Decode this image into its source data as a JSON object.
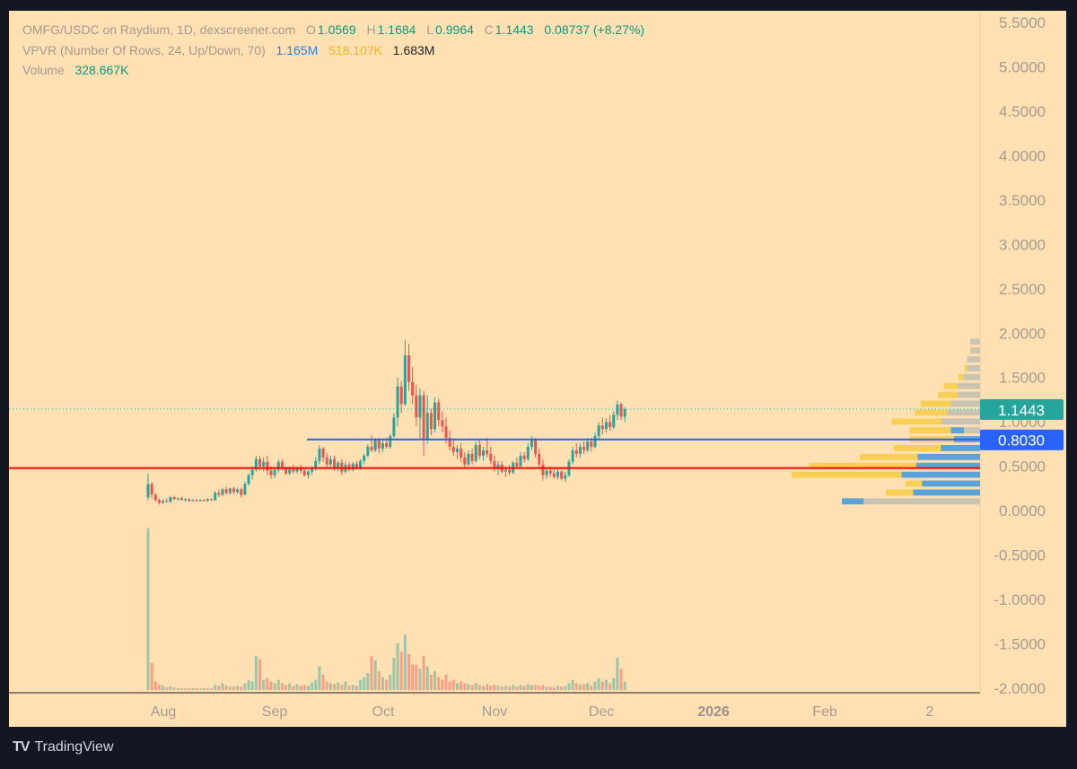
{
  "header": {
    "pair": "OMFG/USDC on Raydium, 1D, dexscreener.com",
    "o_label": "O",
    "o": "1.0569",
    "h_label": "H",
    "h": "1.1684",
    "l_label": "L",
    "l": "0.9964",
    "c_label": "C",
    "c": "1.1443",
    "change": "0.08737 (+8.27%)",
    "vpvr_label": "VPVR (Number Of Rows, 24, Up/Down, 70)",
    "vpvr_up": "1.165M",
    "vpvr_down": "518.107K",
    "vpvr_total": "1.683M",
    "volume_label": "Volume",
    "volume_value": "328.667K"
  },
  "footer": {
    "brand": "TradingView",
    "logo": "TV"
  },
  "colors": {
    "up": "#26a69a",
    "down": "#ef5350",
    "background": "#ffe0b2",
    "support": "#ff0000",
    "resistance": "#2962ff"
  },
  "chart_data": {
    "type": "candlestick",
    "ylim": [
      -2.0,
      5.5
    ],
    "y_ticks": [
      "5.5000",
      "5.0000",
      "4.5000",
      "4.0000",
      "3.5000",
      "3.0000",
      "2.5000",
      "2.0000",
      "1.5000",
      "1.0000",
      "0.5000",
      "0.0000",
      "-0.5000",
      "-1.0000",
      "-1.5000",
      "-2.0000"
    ],
    "x_ticks": [
      "Aug",
      "Sep",
      "Oct",
      "Nov",
      "Dec",
      "2026",
      "Feb",
      "2"
    ],
    "last_price": 1.1443,
    "last_price_label": "1.1443",
    "horizontal_lines": [
      {
        "name": "resistance",
        "value": 0.803,
        "label": "0.8030",
        "color": "#2962ff"
      },
      {
        "name": "support",
        "value": 0.48,
        "color": "#ff0000"
      }
    ],
    "vpvr_rows": [
      {
        "price": 1.9,
        "up": 0.0,
        "down": 0.0,
        "other": 0.03
      },
      {
        "price": 1.8,
        "up": 0.0,
        "down": 0.0,
        "other": 0.03
      },
      {
        "price": 1.7,
        "up": 0.0,
        "down": 0.0,
        "other": 0.04
      },
      {
        "price": 1.6,
        "up": 0.0,
        "down": 0.01,
        "other": 0.04
      },
      {
        "price": 1.5,
        "up": 0.0,
        "down": 0.02,
        "other": 0.05
      },
      {
        "price": 1.4,
        "up": 0.0,
        "down": 0.05,
        "other": 0.07
      },
      {
        "price": 1.3,
        "up": 0.0,
        "down": 0.07,
        "other": 0.07
      },
      {
        "price": 1.2,
        "up": 0.0,
        "down": 0.11,
        "other": 0.09
      },
      {
        "price": 1.1,
        "up": 0.0,
        "down": 0.12,
        "other": 0.1
      },
      {
        "price": 1.0,
        "up": 0.0,
        "down": 0.18,
        "other": 0.12
      },
      {
        "price": 0.9,
        "up": 0.09,
        "down": 0.15,
        "other": 0.05
      },
      {
        "price": 0.8,
        "up": 0.18,
        "down": 0.16,
        "other": 0.0
      },
      {
        "price": 0.7,
        "up": 0.27,
        "down": 0.17,
        "other": 0.0
      },
      {
        "price": 0.6,
        "up": 0.43,
        "down": 0.21,
        "other": 0.0
      },
      {
        "price": 0.5,
        "up": 0.44,
        "down": 0.39,
        "other": 0.0
      },
      {
        "price": 0.4,
        "up": 0.54,
        "down": 0.4,
        "other": 0.0
      },
      {
        "price": 0.3,
        "up": 0.4,
        "down": 0.06,
        "other": 0.0
      },
      {
        "price": 0.2,
        "up": 0.46,
        "down": 0.1,
        "other": 0.0
      },
      {
        "price": 0.1,
        "up": 0.15,
        "down": 0.0,
        "other": 0.36
      }
    ],
    "candles": [
      {
        "o": 0.15,
        "h": 0.42,
        "l": 0.12,
        "c": 0.3,
        "v": 1.9
      },
      {
        "o": 0.3,
        "h": 0.32,
        "l": 0.14,
        "c": 0.18,
        "v": 0.32
      },
      {
        "o": 0.18,
        "h": 0.2,
        "l": 0.1,
        "c": 0.12,
        "v": 0.1
      },
      {
        "o": 0.12,
        "h": 0.14,
        "l": 0.07,
        "c": 0.09,
        "v": 0.06
      },
      {
        "o": 0.09,
        "h": 0.13,
        "l": 0.07,
        "c": 0.11,
        "v": 0.05
      },
      {
        "o": 0.11,
        "h": 0.14,
        "l": 0.09,
        "c": 0.1,
        "v": 0.03
      },
      {
        "o": 0.1,
        "h": 0.16,
        "l": 0.09,
        "c": 0.15,
        "v": 0.04
      },
      {
        "o": 0.15,
        "h": 0.17,
        "l": 0.12,
        "c": 0.13,
        "v": 0.03
      },
      {
        "o": 0.13,
        "h": 0.15,
        "l": 0.11,
        "c": 0.14,
        "v": 0.02
      },
      {
        "o": 0.14,
        "h": 0.16,
        "l": 0.12,
        "c": 0.12,
        "v": 0.02
      },
      {
        "o": 0.12,
        "h": 0.14,
        "l": 0.1,
        "c": 0.13,
        "v": 0.02
      },
      {
        "o": 0.13,
        "h": 0.14,
        "l": 0.1,
        "c": 0.11,
        "v": 0.02
      },
      {
        "o": 0.11,
        "h": 0.13,
        "l": 0.1,
        "c": 0.12,
        "v": 0.02
      },
      {
        "o": 0.12,
        "h": 0.13,
        "l": 0.1,
        "c": 0.11,
        "v": 0.02
      },
      {
        "o": 0.11,
        "h": 0.13,
        "l": 0.1,
        "c": 0.12,
        "v": 0.02
      },
      {
        "o": 0.12,
        "h": 0.13,
        "l": 0.1,
        "c": 0.11,
        "v": 0.02
      },
      {
        "o": 0.11,
        "h": 0.14,
        "l": 0.1,
        "c": 0.13,
        "v": 0.02
      },
      {
        "o": 0.13,
        "h": 0.14,
        "l": 0.11,
        "c": 0.12,
        "v": 0.02
      },
      {
        "o": 0.12,
        "h": 0.22,
        "l": 0.11,
        "c": 0.2,
        "v": 0.06
      },
      {
        "o": 0.2,
        "h": 0.24,
        "l": 0.15,
        "c": 0.18,
        "v": 0.05
      },
      {
        "o": 0.18,
        "h": 0.26,
        "l": 0.16,
        "c": 0.24,
        "v": 0.08
      },
      {
        "o": 0.24,
        "h": 0.27,
        "l": 0.18,
        "c": 0.2,
        "v": 0.05
      },
      {
        "o": 0.2,
        "h": 0.26,
        "l": 0.18,
        "c": 0.25,
        "v": 0.04
      },
      {
        "o": 0.25,
        "h": 0.27,
        "l": 0.19,
        "c": 0.21,
        "v": 0.04
      },
      {
        "o": 0.21,
        "h": 0.26,
        "l": 0.19,
        "c": 0.24,
        "v": 0.05
      },
      {
        "o": 0.24,
        "h": 0.26,
        "l": 0.15,
        "c": 0.18,
        "v": 0.04
      },
      {
        "o": 0.18,
        "h": 0.33,
        "l": 0.17,
        "c": 0.3,
        "v": 0.08
      },
      {
        "o": 0.3,
        "h": 0.42,
        "l": 0.28,
        "c": 0.4,
        "v": 0.12
      },
      {
        "o": 0.4,
        "h": 0.5,
        "l": 0.35,
        "c": 0.46,
        "v": 0.1
      },
      {
        "o": 0.46,
        "h": 0.62,
        "l": 0.44,
        "c": 0.58,
        "v": 0.4
      },
      {
        "o": 0.58,
        "h": 0.62,
        "l": 0.45,
        "c": 0.5,
        "v": 0.36
      },
      {
        "o": 0.5,
        "h": 0.6,
        "l": 0.44,
        "c": 0.55,
        "v": 0.12
      },
      {
        "o": 0.55,
        "h": 0.62,
        "l": 0.4,
        "c": 0.45,
        "v": 0.14
      },
      {
        "o": 0.45,
        "h": 0.5,
        "l": 0.36,
        "c": 0.4,
        "v": 0.1
      },
      {
        "o": 0.4,
        "h": 0.48,
        "l": 0.37,
        "c": 0.46,
        "v": 0.08
      },
      {
        "o": 0.46,
        "h": 0.58,
        "l": 0.43,
        "c": 0.55,
        "v": 0.12
      },
      {
        "o": 0.55,
        "h": 0.58,
        "l": 0.45,
        "c": 0.48,
        "v": 0.08
      },
      {
        "o": 0.48,
        "h": 0.5,
        "l": 0.4,
        "c": 0.42,
        "v": 0.06
      },
      {
        "o": 0.42,
        "h": 0.5,
        "l": 0.4,
        "c": 0.48,
        "v": 0.08
      },
      {
        "o": 0.48,
        "h": 0.52,
        "l": 0.42,
        "c": 0.44,
        "v": 0.05
      },
      {
        "o": 0.44,
        "h": 0.5,
        "l": 0.42,
        "c": 0.48,
        "v": 0.07
      },
      {
        "o": 0.48,
        "h": 0.52,
        "l": 0.42,
        "c": 0.45,
        "v": 0.05
      },
      {
        "o": 0.45,
        "h": 0.48,
        "l": 0.38,
        "c": 0.4,
        "v": 0.06
      },
      {
        "o": 0.4,
        "h": 0.46,
        "l": 0.36,
        "c": 0.44,
        "v": 0.05
      },
      {
        "o": 0.44,
        "h": 0.5,
        "l": 0.4,
        "c": 0.48,
        "v": 0.09
      },
      {
        "o": 0.48,
        "h": 0.6,
        "l": 0.45,
        "c": 0.56,
        "v": 0.12
      },
      {
        "o": 0.56,
        "h": 0.74,
        "l": 0.52,
        "c": 0.7,
        "v": 0.28
      },
      {
        "o": 0.7,
        "h": 0.72,
        "l": 0.55,
        "c": 0.6,
        "v": 0.18
      },
      {
        "o": 0.6,
        "h": 0.65,
        "l": 0.48,
        "c": 0.52,
        "v": 0.1
      },
      {
        "o": 0.52,
        "h": 0.62,
        "l": 0.48,
        "c": 0.58,
        "v": 0.08
      },
      {
        "o": 0.58,
        "h": 0.62,
        "l": 0.45,
        "c": 0.48,
        "v": 0.07
      },
      {
        "o": 0.48,
        "h": 0.56,
        "l": 0.44,
        "c": 0.54,
        "v": 0.09
      },
      {
        "o": 0.54,
        "h": 0.58,
        "l": 0.4,
        "c": 0.44,
        "v": 0.06
      },
      {
        "o": 0.44,
        "h": 0.55,
        "l": 0.42,
        "c": 0.52,
        "v": 0.1
      },
      {
        "o": 0.52,
        "h": 0.55,
        "l": 0.44,
        "c": 0.46,
        "v": 0.05
      },
      {
        "o": 0.46,
        "h": 0.55,
        "l": 0.44,
        "c": 0.53,
        "v": 0.06
      },
      {
        "o": 0.53,
        "h": 0.56,
        "l": 0.46,
        "c": 0.48,
        "v": 0.05
      },
      {
        "o": 0.48,
        "h": 0.58,
        "l": 0.46,
        "c": 0.56,
        "v": 0.12
      },
      {
        "o": 0.56,
        "h": 0.64,
        "l": 0.52,
        "c": 0.62,
        "v": 0.15
      },
      {
        "o": 0.62,
        "h": 0.75,
        "l": 0.6,
        "c": 0.72,
        "v": 0.2
      },
      {
        "o": 0.72,
        "h": 0.85,
        "l": 0.66,
        "c": 0.68,
        "v": 0.4
      },
      {
        "o": 0.68,
        "h": 0.82,
        "l": 0.66,
        "c": 0.8,
        "v": 0.35
      },
      {
        "o": 0.8,
        "h": 0.82,
        "l": 0.65,
        "c": 0.7,
        "v": 0.22
      },
      {
        "o": 0.7,
        "h": 0.8,
        "l": 0.66,
        "c": 0.76,
        "v": 0.15
      },
      {
        "o": 0.76,
        "h": 0.82,
        "l": 0.7,
        "c": 0.72,
        "v": 0.12
      },
      {
        "o": 0.72,
        "h": 0.86,
        "l": 0.7,
        "c": 0.84,
        "v": 0.18
      },
      {
        "o": 0.84,
        "h": 1.1,
        "l": 0.82,
        "c": 1.05,
        "v": 0.38
      },
      {
        "o": 1.05,
        "h": 1.5,
        "l": 0.95,
        "c": 1.4,
        "v": 0.55
      },
      {
        "o": 1.4,
        "h": 1.46,
        "l": 1.1,
        "c": 1.2,
        "v": 0.45
      },
      {
        "o": 1.2,
        "h": 1.92,
        "l": 1.18,
        "c": 1.75,
        "v": 0.65
      },
      {
        "o": 1.75,
        "h": 1.88,
        "l": 1.35,
        "c": 1.45,
        "v": 0.42
      },
      {
        "o": 1.45,
        "h": 1.62,
        "l": 1.2,
        "c": 1.3,
        "v": 0.3
      },
      {
        "o": 1.3,
        "h": 1.42,
        "l": 0.95,
        "c": 1.05,
        "v": 0.3
      },
      {
        "o": 1.05,
        "h": 1.38,
        "l": 0.8,
        "c": 1.3,
        "v": 0.25
      },
      {
        "o": 1.3,
        "h": 1.35,
        "l": 0.62,
        "c": 0.8,
        "v": 0.4
      },
      {
        "o": 0.8,
        "h": 1.3,
        "l": 0.75,
        "c": 1.1,
        "v": 0.28
      },
      {
        "o": 1.1,
        "h": 1.15,
        "l": 0.85,
        "c": 0.92,
        "v": 0.18
      },
      {
        "o": 0.92,
        "h": 1.28,
        "l": 0.88,
        "c": 1.22,
        "v": 0.22
      },
      {
        "o": 1.22,
        "h": 1.26,
        "l": 0.95,
        "c": 1.02,
        "v": 0.15
      },
      {
        "o": 1.02,
        "h": 1.12,
        "l": 0.88,
        "c": 0.95,
        "v": 0.12
      },
      {
        "o": 0.95,
        "h": 1.05,
        "l": 0.76,
        "c": 0.82,
        "v": 0.18
      },
      {
        "o": 0.82,
        "h": 0.9,
        "l": 0.68,
        "c": 0.72,
        "v": 0.1
      },
      {
        "o": 0.72,
        "h": 0.8,
        "l": 0.62,
        "c": 0.66,
        "v": 0.12
      },
      {
        "o": 0.66,
        "h": 0.74,
        "l": 0.58,
        "c": 0.7,
        "v": 0.08
      },
      {
        "o": 0.7,
        "h": 0.76,
        "l": 0.55,
        "c": 0.6,
        "v": 0.1
      },
      {
        "o": 0.6,
        "h": 0.66,
        "l": 0.48,
        "c": 0.52,
        "v": 0.08
      },
      {
        "o": 0.52,
        "h": 0.68,
        "l": 0.5,
        "c": 0.64,
        "v": 0.07
      },
      {
        "o": 0.64,
        "h": 0.7,
        "l": 0.52,
        "c": 0.56,
        "v": 0.06
      },
      {
        "o": 0.56,
        "h": 0.78,
        "l": 0.54,
        "c": 0.74,
        "v": 0.08
      },
      {
        "o": 0.74,
        "h": 0.8,
        "l": 0.58,
        "c": 0.62,
        "v": 0.06
      },
      {
        "o": 0.62,
        "h": 0.72,
        "l": 0.56,
        "c": 0.68,
        "v": 0.05
      },
      {
        "o": 0.68,
        "h": 0.82,
        "l": 0.6,
        "c": 0.64,
        "v": 0.07
      },
      {
        "o": 0.64,
        "h": 0.72,
        "l": 0.52,
        "c": 0.56,
        "v": 0.05
      },
      {
        "o": 0.56,
        "h": 0.62,
        "l": 0.44,
        "c": 0.48,
        "v": 0.06
      },
      {
        "o": 0.48,
        "h": 0.56,
        "l": 0.4,
        "c": 0.52,
        "v": 0.05
      },
      {
        "o": 0.52,
        "h": 0.56,
        "l": 0.42,
        "c": 0.44,
        "v": 0.04
      },
      {
        "o": 0.44,
        "h": 0.5,
        "l": 0.38,
        "c": 0.46,
        "v": 0.05
      },
      {
        "o": 0.46,
        "h": 0.52,
        "l": 0.4,
        "c": 0.43,
        "v": 0.04
      },
      {
        "o": 0.43,
        "h": 0.56,
        "l": 0.41,
        "c": 0.54,
        "v": 0.06
      },
      {
        "o": 0.54,
        "h": 0.6,
        "l": 0.48,
        "c": 0.5,
        "v": 0.04
      },
      {
        "o": 0.5,
        "h": 0.66,
        "l": 0.48,
        "c": 0.62,
        "v": 0.06
      },
      {
        "o": 0.62,
        "h": 0.66,
        "l": 0.54,
        "c": 0.58,
        "v": 0.05
      },
      {
        "o": 0.58,
        "h": 0.76,
        "l": 0.56,
        "c": 0.72,
        "v": 0.07
      },
      {
        "o": 0.72,
        "h": 0.84,
        "l": 0.68,
        "c": 0.8,
        "v": 0.06
      },
      {
        "o": 0.8,
        "h": 0.82,
        "l": 0.6,
        "c": 0.64,
        "v": 0.06
      },
      {
        "o": 0.64,
        "h": 0.7,
        "l": 0.48,
        "c": 0.52,
        "v": 0.05
      },
      {
        "o": 0.52,
        "h": 0.58,
        "l": 0.34,
        "c": 0.4,
        "v": 0.06
      },
      {
        "o": 0.4,
        "h": 0.48,
        "l": 0.36,
        "c": 0.45,
        "v": 0.04
      },
      {
        "o": 0.45,
        "h": 0.5,
        "l": 0.38,
        "c": 0.42,
        "v": 0.04
      },
      {
        "o": 0.42,
        "h": 0.48,
        "l": 0.36,
        "c": 0.38,
        "v": 0.03
      },
      {
        "o": 0.38,
        "h": 0.48,
        "l": 0.35,
        "c": 0.44,
        "v": 0.05
      },
      {
        "o": 0.44,
        "h": 0.46,
        "l": 0.34,
        "c": 0.36,
        "v": 0.04
      },
      {
        "o": 0.36,
        "h": 0.44,
        "l": 0.32,
        "c": 0.4,
        "v": 0.05
      },
      {
        "o": 0.4,
        "h": 0.58,
        "l": 0.38,
        "c": 0.55,
        "v": 0.08
      },
      {
        "o": 0.55,
        "h": 0.72,
        "l": 0.52,
        "c": 0.68,
        "v": 0.12
      },
      {
        "o": 0.68,
        "h": 0.76,
        "l": 0.6,
        "c": 0.64,
        "v": 0.08
      },
      {
        "o": 0.64,
        "h": 0.76,
        "l": 0.6,
        "c": 0.72,
        "v": 0.06
      },
      {
        "o": 0.72,
        "h": 0.78,
        "l": 0.64,
        "c": 0.68,
        "v": 0.07
      },
      {
        "o": 0.68,
        "h": 0.82,
        "l": 0.66,
        "c": 0.78,
        "v": 0.08
      },
      {
        "o": 0.78,
        "h": 0.82,
        "l": 0.66,
        "c": 0.72,
        "v": 0.05
      },
      {
        "o": 0.72,
        "h": 0.88,
        "l": 0.7,
        "c": 0.84,
        "v": 0.1
      },
      {
        "o": 0.84,
        "h": 1.0,
        "l": 0.8,
        "c": 0.96,
        "v": 0.14
      },
      {
        "o": 0.96,
        "h": 1.05,
        "l": 0.86,
        "c": 0.92,
        "v": 0.1
      },
      {
        "o": 0.92,
        "h": 1.04,
        "l": 0.88,
        "c": 1.0,
        "v": 0.12
      },
      {
        "o": 1.0,
        "h": 1.08,
        "l": 0.9,
        "c": 0.94,
        "v": 0.08
      },
      {
        "o": 0.94,
        "h": 1.12,
        "l": 0.92,
        "c": 1.08,
        "v": 0.14
      },
      {
        "o": 1.08,
        "h": 1.24,
        "l": 1.02,
        "c": 1.2,
        "v": 0.38
      },
      {
        "o": 1.2,
        "h": 1.22,
        "l": 1.02,
        "c": 1.06,
        "v": 0.25
      },
      {
        "o": 1.0569,
        "h": 1.1684,
        "l": 0.9964,
        "c": 1.1443,
        "v": 0.1
      }
    ]
  }
}
